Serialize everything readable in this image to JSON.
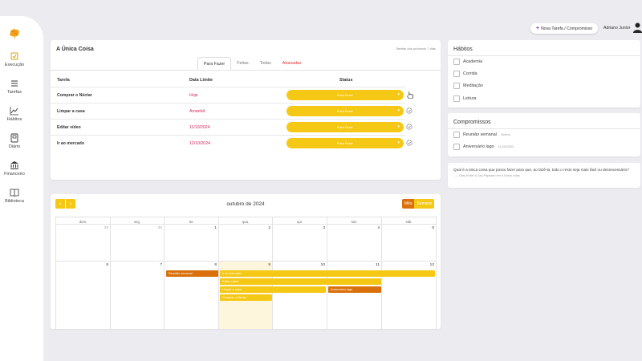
{
  "sidebar": {
    "items": [
      {
        "label": "Execução",
        "icon": "execution-icon"
      },
      {
        "label": "Tarefas",
        "icon": "list-icon"
      },
      {
        "label": "Hábitos",
        "icon": "chart-icon"
      },
      {
        "label": "Diário",
        "icon": "journal-icon"
      },
      {
        "label": "Financeiro",
        "icon": "bank-icon"
      },
      {
        "label": "Biblioteca",
        "icon": "book-icon"
      }
    ]
  },
  "header": {
    "new_task_label": "Nova Tarefa / Compromisso",
    "user_name": "Adriano Junior"
  },
  "main": {
    "title": "A Única Coisa",
    "subtitle": "Tarefas dos próximos 7 dias",
    "tabs": [
      {
        "label": "Para Fazer",
        "active": true
      },
      {
        "label": "Feitas"
      },
      {
        "label": "Todas"
      },
      {
        "label": "Atrasadas",
        "late": true
      }
    ],
    "columns": [
      "Tarefa",
      "Data Limite",
      "Status"
    ],
    "rows": [
      {
        "task": "Comprar o Néctar",
        "date": "Hoje",
        "status": "Para Fazer"
      },
      {
        "task": "Limpar a casa",
        "date": "Amanhã",
        "status": "Para Fazer"
      },
      {
        "task": "Editar vídeo",
        "date": "11/10/2024",
        "status": "Para Fazer"
      },
      {
        "task": "Ir ao mercado",
        "date": "12/10/2024",
        "status": "Para Fazer"
      }
    ]
  },
  "calendar": {
    "title": "outubro de 2024",
    "prev": "‹",
    "next": "›",
    "views": [
      "Mês",
      "Semana"
    ],
    "weekdays": [
      "dom.",
      "seg.",
      "ter.",
      "qua.",
      "qui.",
      "sex.",
      "sáb."
    ],
    "week1": [
      "29",
      "30",
      "1",
      "2",
      "3",
      "4",
      "5"
    ],
    "week2": [
      "6",
      "7",
      "8",
      "9",
      "10",
      "11",
      "12"
    ],
    "events": {
      "reuniao": "Reunião semanal",
      "mercado": "Ir ao mercado",
      "editar": "Editar vídeo",
      "limpar": "Limpar a casa",
      "aniversario": "Aniversário lago",
      "comprar": "Comprar o Néctar"
    }
  },
  "habits": {
    "title": "Hábitos",
    "items": [
      "Academia",
      "Corrida",
      "Meditação",
      "Leitura"
    ]
  },
  "compromissos": {
    "title": "Compromissos",
    "items": [
      {
        "label": "Reunião semanal",
        "date": "Ontem"
      },
      {
        "label": "Aniversário lago",
        "date": "11/10/2024"
      }
    ]
  },
  "quote": {
    "text": "Qual é a única coisa que posso fazer para que, ao fazê-la, todo o resto seja mais fácil ou desnecessário?",
    "source": "— Gary Keller & Jay Papasan em A Única coisa"
  },
  "colors": {
    "accent": "#f6c816",
    "orange": "#d9700b",
    "late": "#d6245a"
  }
}
